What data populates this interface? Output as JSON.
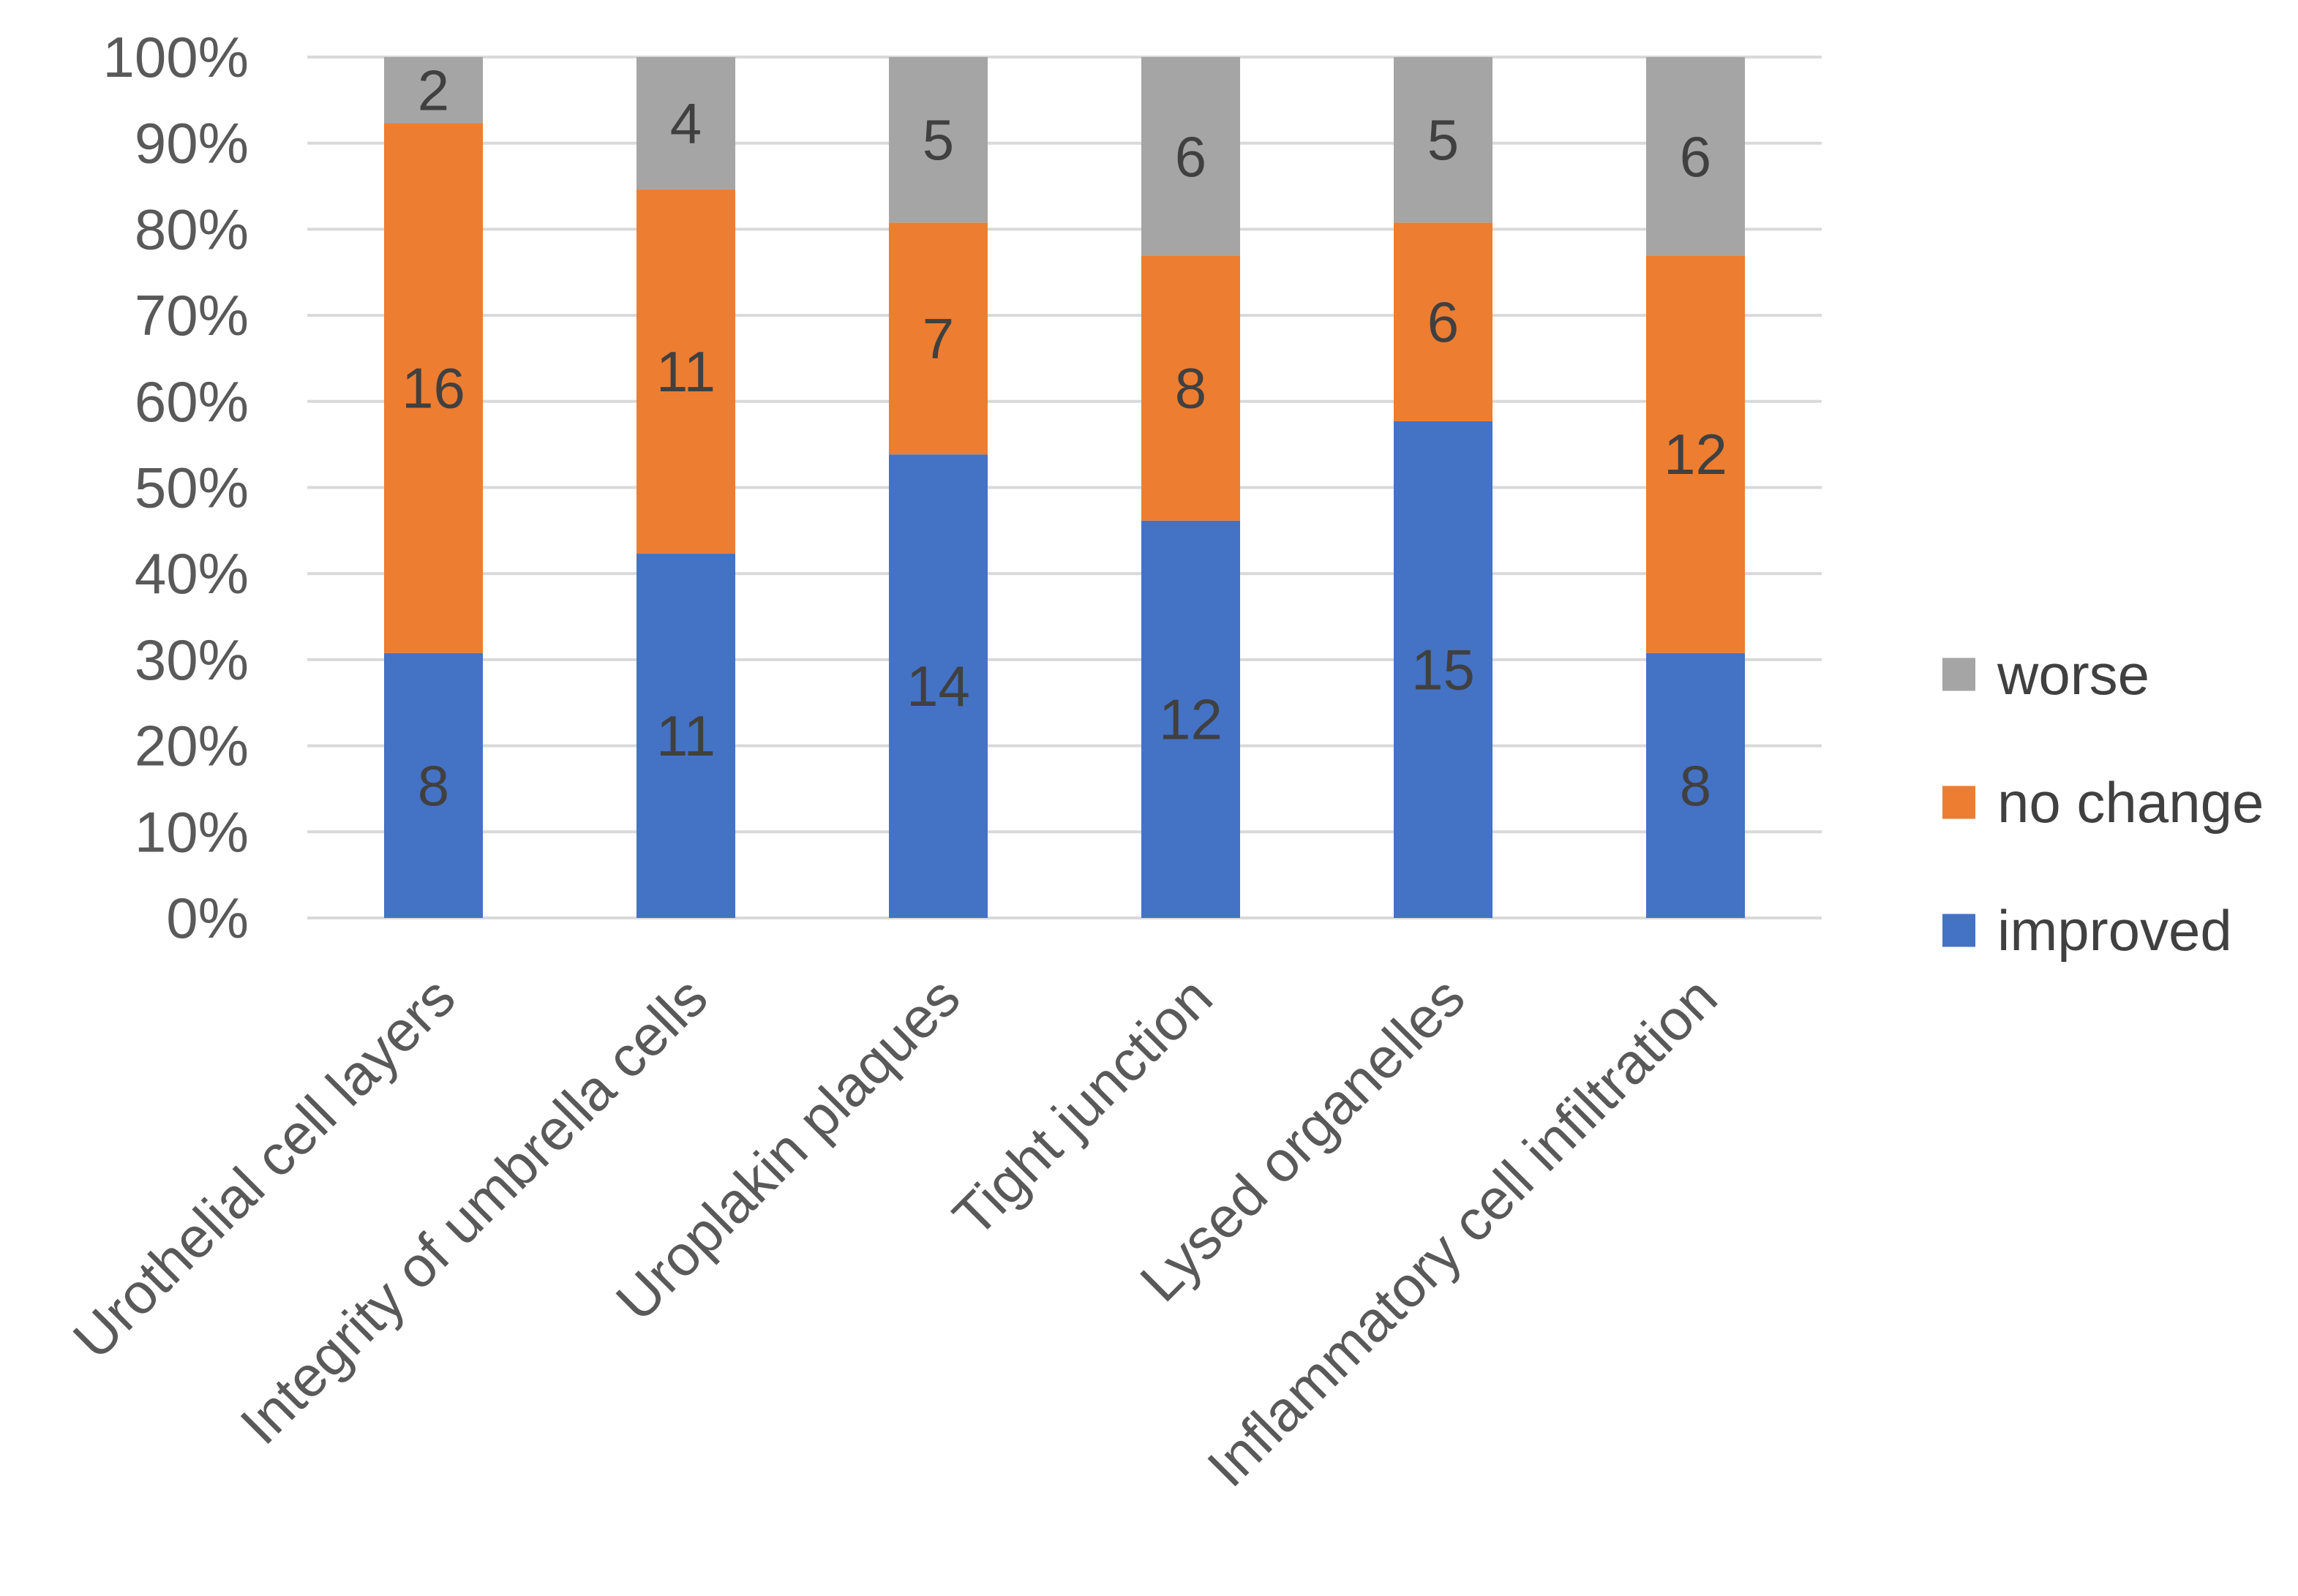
{
  "chart_data": {
    "type": "bar",
    "stacked": "percent",
    "title": "",
    "xlabel": "",
    "ylabel": "",
    "ylim": [
      0,
      100
    ],
    "y_ticks": [
      "0%",
      "10%",
      "20%",
      "30%",
      "40%",
      "50%",
      "60%",
      "70%",
      "80%",
      "90%",
      "100%"
    ],
    "grid": true,
    "legend_position": "right",
    "categories": [
      "Urothelial cell layers",
      "Integrity of umbrella cells",
      "Uroplakin plaques",
      "Tight junction",
      "Lysed organelles",
      "Inflammatory cell infiltration"
    ],
    "series": [
      {
        "name": "improved",
        "color": "#4472c4",
        "values": [
          8,
          11,
          14,
          12,
          15,
          8
        ]
      },
      {
        "name": "no change",
        "color": "#ed7d31",
        "values": [
          16,
          11,
          7,
          8,
          6,
          12
        ]
      },
      {
        "name": "worse",
        "color": "#a5a5a5",
        "values": [
          2,
          4,
          5,
          6,
          5,
          6
        ]
      }
    ],
    "legend_order": [
      "worse",
      "no change",
      "improved"
    ]
  }
}
